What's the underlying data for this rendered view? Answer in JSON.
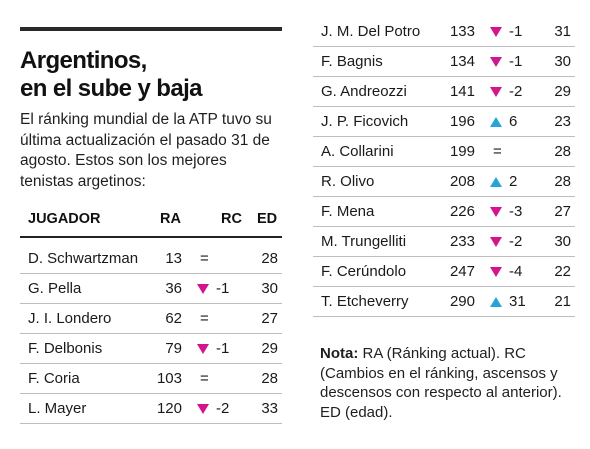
{
  "title_line1": "Argentinos,",
  "title_line2": "en el sube y baja",
  "intro": "El ránking mundial de la ATP tuvo su última actualización el pasado 31 de agosto. Estos son los mejores tenistas argetinos:",
  "headers": {
    "jugador": "JUGADOR",
    "ra": "RA",
    "rc": "RC",
    "ed": "ED"
  },
  "colors": {
    "down": "#d4148b",
    "up": "#2aa3d8"
  },
  "left_rows": [
    {
      "name": "D. Schwartzman",
      "ra": "13",
      "dir": "eq",
      "rc": "=",
      "ed": "28"
    },
    {
      "name": "G. Pella",
      "ra": "36",
      "dir": "down",
      "rc": "-1",
      "ed": "30"
    },
    {
      "name": "J. I. Londero",
      "ra": "62",
      "dir": "eq",
      "rc": "=",
      "ed": "27"
    },
    {
      "name": "F. Delbonis",
      "ra": "79",
      "dir": "down",
      "rc": "-1",
      "ed": "29"
    },
    {
      "name": "F. Coria",
      "ra": "103",
      "dir": "eq",
      "rc": "=",
      "ed": "28"
    },
    {
      "name": "L. Mayer",
      "ra": "120",
      "dir": "down",
      "rc": "-2",
      "ed": "33"
    }
  ],
  "right_rows": [
    {
      "name": "J. M. Del Potro",
      "ra": "133",
      "dir": "down",
      "rc": "-1",
      "ed": "31"
    },
    {
      "name": "F. Bagnis",
      "ra": "134",
      "dir": "down",
      "rc": "-1",
      "ed": "30"
    },
    {
      "name": "G. Andreozzi",
      "ra": "141",
      "dir": "down",
      "rc": "-2",
      "ed": "29"
    },
    {
      "name": "J. P. Ficovich",
      "ra": "196",
      "dir": "up",
      "rc": "6",
      "ed": "23"
    },
    {
      "name": "A. Collarini",
      "ra": "199",
      "dir": "eq",
      "rc": "=",
      "ed": "28"
    },
    {
      "name": "R. Olivo",
      "ra": "208",
      "dir": "up",
      "rc": "2",
      "ed": "28"
    },
    {
      "name": "F. Mena",
      "ra": "226",
      "dir": "down",
      "rc": "-3",
      "ed": "27"
    },
    {
      "name": "M. Trungelliti",
      "ra": "233",
      "dir": "down",
      "rc": "-2",
      "ed": "30"
    },
    {
      "name": "F. Cerúndolo",
      "ra": "247",
      "dir": "down",
      "rc": "-4",
      "ed": "22"
    },
    {
      "name": "T. Etcheverry",
      "ra": "290",
      "dir": "up",
      "rc": "31",
      "ed": "21"
    }
  ],
  "nota_label": "Nota:",
  "nota_text": " RA (Ránking actual). RC (Cambios en el ránking, ascensos y descensos con respecto al anterior). ED (edad)."
}
